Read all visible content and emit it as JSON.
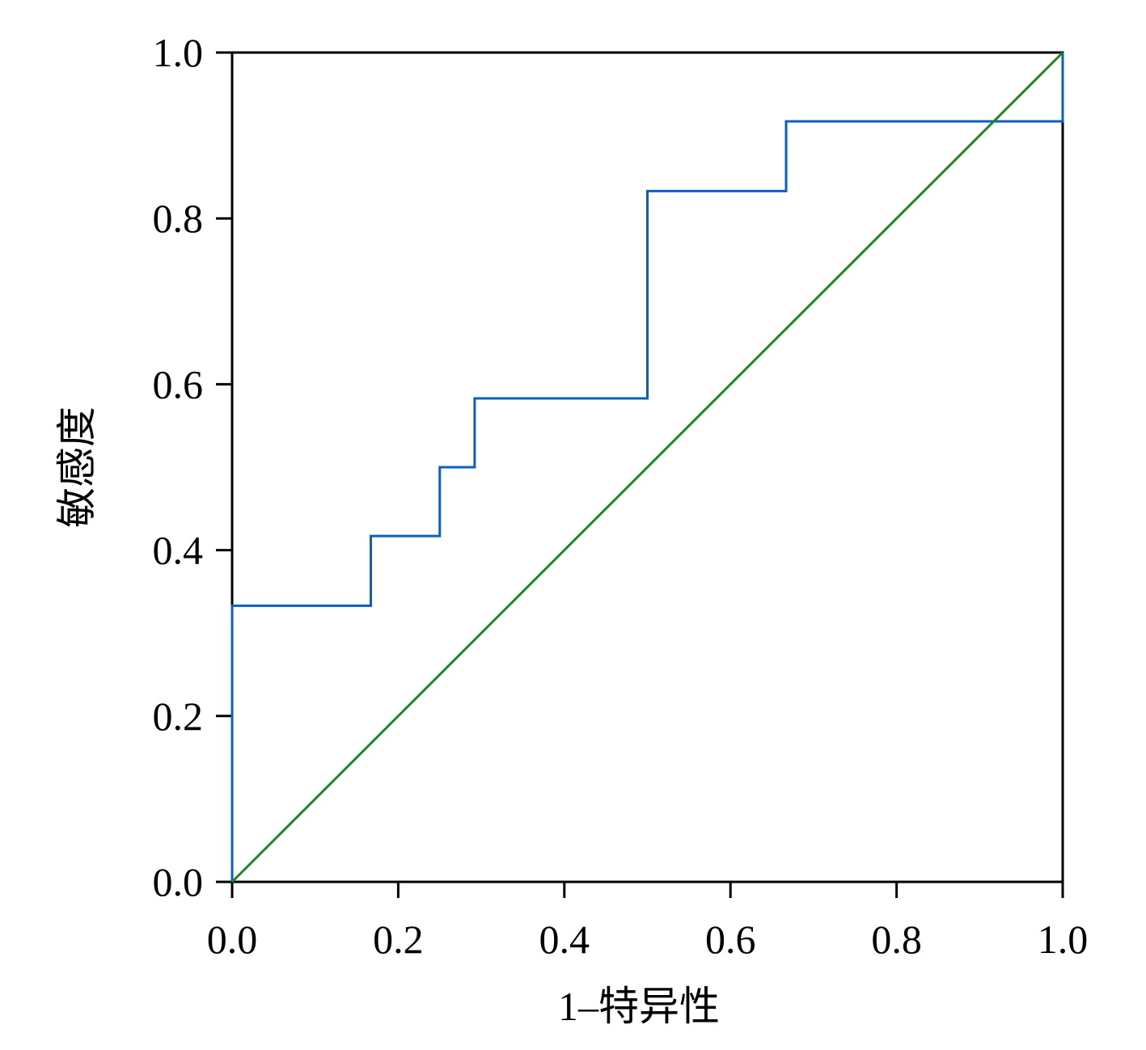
{
  "chart_data": {
    "type": "line",
    "x_label": "1–特异性",
    "y_label": "敏感度",
    "xlim": [
      0,
      1
    ],
    "ylim": [
      0,
      1
    ],
    "xticks": [
      {
        "value": 0,
        "label": "0.0"
      },
      0.2,
      0.4,
      0.6,
      0.8,
      {
        "value": 1,
        "label": "1.0"
      }
    ],
    "yticks": [
      {
        "value": 0,
        "label": "0.0"
      },
      0.2,
      0.4,
      0.6,
      0.8,
      {
        "value": 1,
        "label": "1.0"
      }
    ],
    "series": [
      {
        "color": "#0a5fc2",
        "step": true,
        "x": [
          0,
          0,
          0.167,
          0.167,
          0.25,
          0.25,
          0.292,
          0.292,
          0.5,
          0.5,
          0.667,
          0.667,
          1,
          1
        ],
        "values": [
          0,
          0.333,
          0.333,
          0.417,
          0.417,
          0.5,
          0.5,
          0.583,
          0.583,
          0.833,
          0.833,
          0.917,
          0.917,
          1
        ]
      },
      {
        "color": "#1a8a1a",
        "x": [
          0,
          1
        ],
        "values": [
          0,
          1
        ]
      }
    ]
  }
}
